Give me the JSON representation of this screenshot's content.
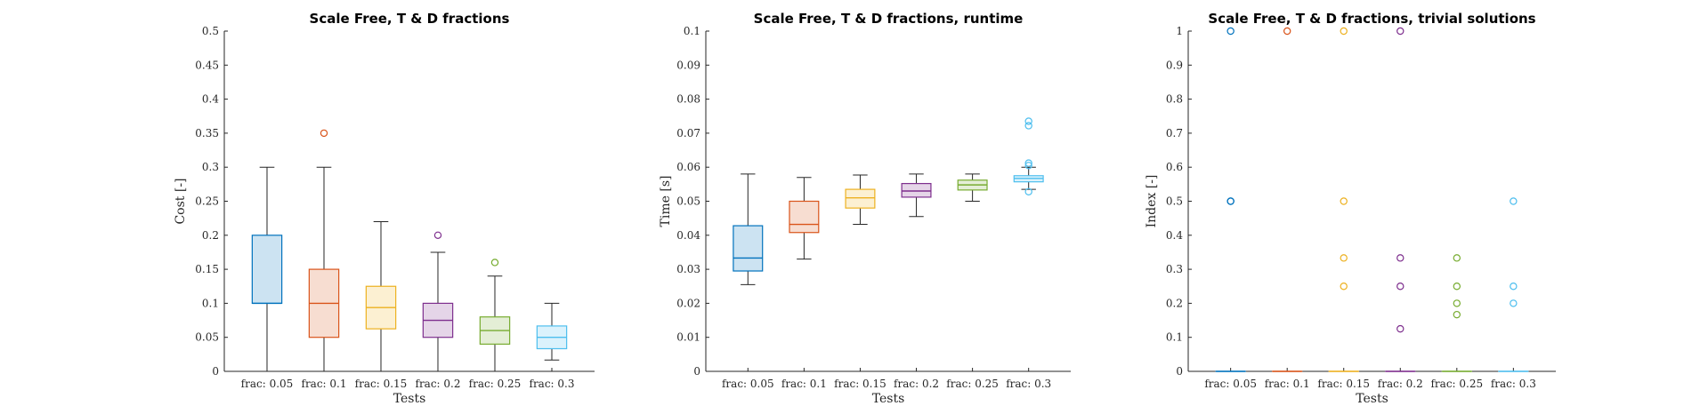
{
  "chart_data": [
    {
      "type": "box",
      "title": "Scale Free, T & D fractions",
      "xlabel": "Tests",
      "ylabel": "Cost [-]",
      "ylim": [
        0,
        0.5
      ],
      "yticks": [
        "0",
        "0.05",
        "0.1",
        "0.15",
        "0.2",
        "0.25",
        "0.3",
        "0.35",
        "0.4",
        "0.45",
        "0.5"
      ],
      "categories": [
        "frac: 0.05",
        "frac: 0.1",
        "frac: 0.15",
        "frac: 0.2",
        "frac: 0.25",
        "frac: 0.3"
      ],
      "boxes": [
        {
          "whisker_low": 0.0,
          "q1": 0.1,
          "median": 0.1,
          "q3": 0.2,
          "whisker_high": 0.3,
          "outliers": []
        },
        {
          "whisker_low": 0.0,
          "q1": 0.05,
          "median": 0.1,
          "q3": 0.15,
          "whisker_high": 0.3,
          "outliers": [
            0.35
          ]
        },
        {
          "whisker_low": 0.0,
          "q1": 0.0625,
          "median": 0.0938,
          "q3": 0.125,
          "whisker_high": 0.22,
          "outliers": []
        },
        {
          "whisker_low": 0.0,
          "q1": 0.05,
          "median": 0.075,
          "q3": 0.1,
          "whisker_high": 0.175,
          "outliers": [
            0.2
          ]
        },
        {
          "whisker_low": 0.0,
          "q1": 0.04,
          "median": 0.06,
          "q3": 0.08,
          "whisker_high": 0.14,
          "outliers": [
            0.16
          ]
        },
        {
          "whisker_low": 0.0167,
          "q1": 0.0333,
          "median": 0.05,
          "q3": 0.0667,
          "whisker_high": 0.1,
          "outliers": []
        }
      ]
    },
    {
      "type": "box",
      "title": "Scale Free, T & D fractions, runtime",
      "xlabel": "Tests",
      "ylabel": "Time [s]",
      "ylim": [
        0,
        0.1
      ],
      "yticks": [
        "0",
        "0.01",
        "0.02",
        "0.03",
        "0.04",
        "0.05",
        "0.06",
        "0.07",
        "0.08",
        "0.09",
        "0.1"
      ],
      "categories": [
        "frac: 0.05",
        "frac: 0.1",
        "frac: 0.15",
        "frac: 0.2",
        "frac: 0.25",
        "frac: 0.3"
      ],
      "boxes": [
        {
          "whisker_low": 0.0255,
          "q1": 0.0295,
          "median": 0.0333,
          "q3": 0.0428,
          "whisker_high": 0.058,
          "outliers": []
        },
        {
          "whisker_low": 0.033,
          "q1": 0.0408,
          "median": 0.0432,
          "q3": 0.05,
          "whisker_high": 0.057,
          "outliers": []
        },
        {
          "whisker_low": 0.0432,
          "q1": 0.048,
          "median": 0.051,
          "q3": 0.0535,
          "whisker_high": 0.0577,
          "outliers": []
        },
        {
          "whisker_low": 0.0455,
          "q1": 0.0512,
          "median": 0.053,
          "q3": 0.0552,
          "whisker_high": 0.058,
          "outliers": []
        },
        {
          "whisker_low": 0.05,
          "q1": 0.0533,
          "median": 0.0548,
          "q3": 0.0562,
          "whisker_high": 0.058,
          "outliers": []
        },
        {
          "whisker_low": 0.0535,
          "q1": 0.0557,
          "median": 0.0567,
          "q3": 0.0575,
          "whisker_high": 0.06,
          "outliers": [
            0.0528,
            0.0605,
            0.0612,
            0.0722,
            0.0735
          ]
        }
      ]
    },
    {
      "type": "box",
      "title": "Scale Free, T & D fractions, trivial solutions",
      "xlabel": "Tests",
      "ylabel": "Index [-]",
      "ylim": [
        0,
        1
      ],
      "yticks": [
        "0",
        "0.1",
        "0.2",
        "0.3",
        "0.4",
        "0.5",
        "0.6",
        "0.7",
        "0.8",
        "0.9",
        "1"
      ],
      "categories": [
        "frac: 0.05",
        "frac: 0.1",
        "frac: 0.15",
        "frac: 0.2",
        "frac: 0.25",
        "frac: 0.3"
      ],
      "boxes": [
        {
          "whisker_low": 0,
          "q1": 0,
          "median": 0,
          "q3": 0,
          "whisker_high": 0,
          "outliers": [
            0.5,
            0.5,
            1
          ]
        },
        {
          "whisker_low": 0,
          "q1": 0,
          "median": 0,
          "q3": 0,
          "whisker_high": 0,
          "outliers": [
            1
          ]
        },
        {
          "whisker_low": 0,
          "q1": 0,
          "median": 0,
          "q3": 0,
          "whisker_high": 0,
          "outliers": [
            0.25,
            0.3333,
            0.5,
            1
          ]
        },
        {
          "whisker_low": 0,
          "q1": 0,
          "median": 0,
          "q3": 0,
          "whisker_high": 0,
          "outliers": [
            0.125,
            0.25,
            0.3333,
            1
          ]
        },
        {
          "whisker_low": 0,
          "q1": 0,
          "median": 0,
          "q3": 0,
          "whisker_high": 0,
          "outliers": [
            0.1667,
            0.2,
            0.25,
            0.3333
          ]
        },
        {
          "whisker_low": 0,
          "q1": 0,
          "median": 0,
          "q3": 0,
          "whisker_high": 0,
          "outliers": [
            0.2,
            0.25,
            0.5
          ]
        }
      ]
    }
  ],
  "colors": {
    "series": [
      "#0072BD",
      "#D95319",
      "#EDB120",
      "#7E2F8E",
      "#77AC30",
      "#4DBEEE"
    ],
    "box_fill": [
      "#CCE3F2",
      "#F7DDD1",
      "#FCF0D2",
      "#E5D5E8",
      "#E4EED6",
      "#DBF2FC"
    ],
    "whisker": "#262626",
    "axis": "#262626"
  }
}
